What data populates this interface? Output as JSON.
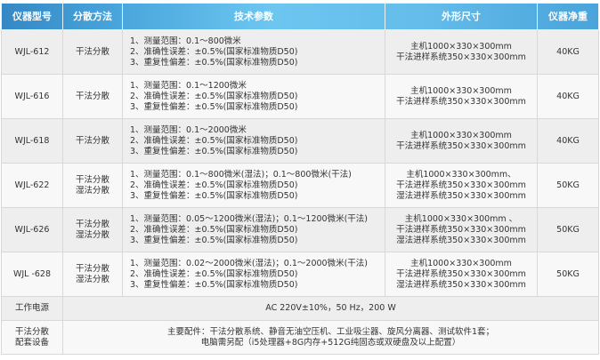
{
  "headers": [
    "仪器型号",
    "分散方法",
    "技术参数",
    "外形尺寸",
    "仪器净重"
  ],
  "rows": [
    {
      "model": "WJL-612",
      "method": [
        "干法分散"
      ],
      "specs": [
        "1、测量范围：0.1～800微米",
        "2、准确性误差：±0.5%(国家标准物质D50)",
        "3、重复性偏差：±0.5%(国家标准物质D50)"
      ],
      "size": [
        "主机1000×330×300mm",
        "干法进样系统350×330×300mm"
      ],
      "weight": "40KG"
    },
    {
      "model": "WJL-616",
      "method": [
        "干法分散"
      ],
      "specs": [
        "1、测量范围：0.1～1200微米",
        "2、准确性误差：±0.5%(国家标准物质D50)",
        "3、重复性偏差：±0.5%(国家标准物质D50)"
      ],
      "size": [
        "主机1000×330×300mm",
        "干法进样系统350×330×300mm"
      ],
      "weight": "40KG"
    },
    {
      "model": "WJL-618",
      "method": [
        "干法分散"
      ],
      "specs": [
        "1、测量范围：0.1～2000微米",
        "2、准确性误差：±0.5%(国家标准物质D50)",
        "3、重复性偏差：±0.5%(国家标准物质D50)"
      ],
      "size": [
        "主机1000×330×300mm",
        "干法进样系统350×330×300mm"
      ],
      "weight": "40KG"
    },
    {
      "model": "WJL-622",
      "method": [
        "干法分散",
        "湿法分散"
      ],
      "specs": [
        "1、测量范围：0.1～800微米(湿法)；0.1～800微米(干法)",
        "2、准确性误差：±0.5%(国家标准物质D50)",
        "3、重复性偏差：±0.5%(国家标准物质D50)"
      ],
      "size": [
        "主机1000×330×300mm、",
        "干法进样系统350×330×300mm",
        "湿法进样系统350×330×300mm"
      ],
      "weight": "50KG"
    },
    {
      "model": "WJL-626",
      "method": [
        "干法分散",
        "湿法分散"
      ],
      "specs": [
        "1、测量范围：0.05～1200微米(湿法)；0.1～1200微米(干法)",
        "2、准确性误差：±0.5%(国家标准物质D50)",
        "3、重复性偏差：±0.5%(国家标准物质D50)"
      ],
      "size": [
        "主机1000×330×300mm 、",
        "干法进样系统350×330×300mm",
        "湿法进样系统350×330×300mm"
      ],
      "weight": "50KG"
    },
    {
      "model": "WJL -628",
      "method": [
        "干法分散",
        "湿法分散"
      ],
      "specs": [
        "1、测量范围：0.02～2000微米(湿法)；0.1～2000微米(干法)",
        "2、准确性误差：±0.5%(国家标准物质D50)",
        "3、重复性偏差：±0.5%(国家标准物质D50)"
      ],
      "size": [
        "主机1000×330×300mm",
        "干法进样系统350×330×300mm",
        "湿法进样系统350×330×300mm"
      ],
      "weight": "50KG"
    }
  ],
  "power": {
    "label": "工作电源",
    "value": "AC 220V±10%，50 Hz，200 W"
  },
  "accessories": {
    "label": [
      "干法分散",
      "配套设备"
    ],
    "value": [
      "主要配件：干法分散系统、静音无油空压机、工业吸尘器、旋风分离器、测试软件1套；",
      "电脑需另配（i5处理器+8G内存+512G纯固态或双硬盘及以上配置）"
    ]
  }
}
